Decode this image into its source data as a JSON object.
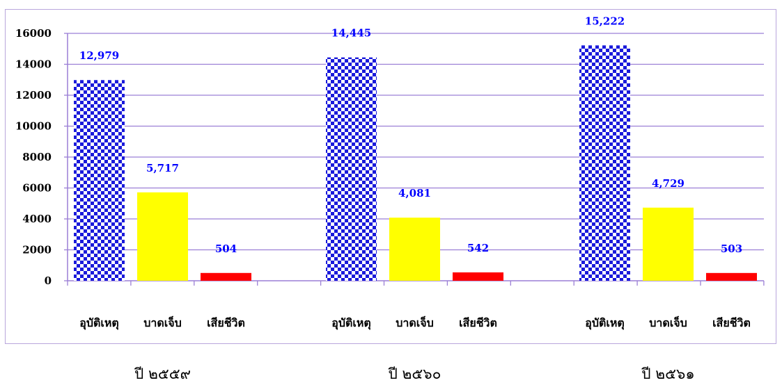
{
  "chart_data": {
    "type": "bar",
    "ylim": [
      0,
      16000
    ],
    "yticks": [
      0,
      2000,
      4000,
      6000,
      8000,
      10000,
      12000,
      14000,
      16000
    ],
    "grid": true,
    "groups": [
      {
        "label": "ปี ๒๕๕๙",
        "bars": [
          {
            "category": "อุบัติเหตุ",
            "value": 12979,
            "value_label": "12,979"
          },
          {
            "category": "บาดเจ็บ",
            "value": 5717,
            "value_label": "5,717"
          },
          {
            "category": "เสียชีวิต",
            "value": 504,
            "value_label": "504"
          }
        ]
      },
      {
        "label": "ปี ๒๕๖๐",
        "bars": [
          {
            "category": "อุบัติเหตุ",
            "value": 14445,
            "value_label": "14,445"
          },
          {
            "category": "บาดเจ็บ",
            "value": 4081,
            "value_label": "4,081"
          },
          {
            "category": "เสียชีวิต",
            "value": 542,
            "value_label": "542"
          }
        ]
      },
      {
        "label": "ปี ๒๕๖๑",
        "bars": [
          {
            "category": "อุบัติเหตุ",
            "value": 15222,
            "value_label": "15,222"
          },
          {
            "category": "บาดเจ็บ",
            "value": 4729,
            "value_label": "4,729"
          },
          {
            "category": "เสียชีวิต",
            "value": 503,
            "value_label": "503"
          }
        ]
      }
    ],
    "colors": {
      "accident_checker": "#1a1adb",
      "injured": "#ffff00",
      "dead": "#ff0000",
      "value_label": "#0000ff",
      "grid": "#9b7fd6"
    }
  }
}
